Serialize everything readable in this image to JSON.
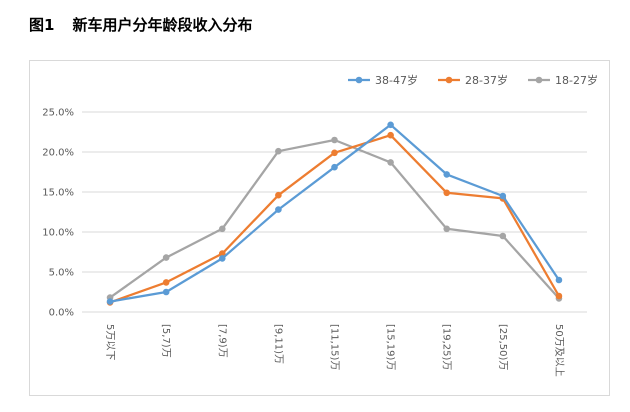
{
  "figure": {
    "number": "图1",
    "caption": "新车用户分年龄段收入分布"
  },
  "chart_data": {
    "type": "line",
    "title": "",
    "xlabel": "",
    "ylabel": "",
    "categories": [
      "5万以下",
      "[5,7)万",
      "[7,9)万",
      "[9,11)万",
      "[11,15)万",
      "[15,19)万",
      "[19,25)万",
      "[25,50)万",
      "50万及以上"
    ],
    "ylim": [
      0,
      25
    ],
    "yticks": [
      "0.0%",
      "5.0%",
      "10.0%",
      "15.0%",
      "20.0%",
      "25.0%"
    ],
    "ytick_values": [
      0,
      5,
      10,
      15,
      20,
      25
    ],
    "grid": true,
    "legend_position": "top-right",
    "series": [
      {
        "name": "38-47岁",
        "color": "#5b9bd5",
        "values": [
          1.3,
          2.5,
          6.7,
          12.8,
          18.1,
          23.4,
          17.2,
          14.5,
          4.0
        ]
      },
      {
        "name": "28-37岁",
        "color": "#ed7d31",
        "values": [
          1.2,
          3.7,
          7.3,
          14.6,
          19.9,
          22.1,
          14.9,
          14.2,
          2.0
        ]
      },
      {
        "name": "18-27岁",
        "color": "#a5a5a5",
        "values": [
          1.8,
          6.8,
          10.4,
          20.1,
          21.5,
          18.7,
          10.4,
          9.5,
          1.7
        ]
      }
    ]
  }
}
